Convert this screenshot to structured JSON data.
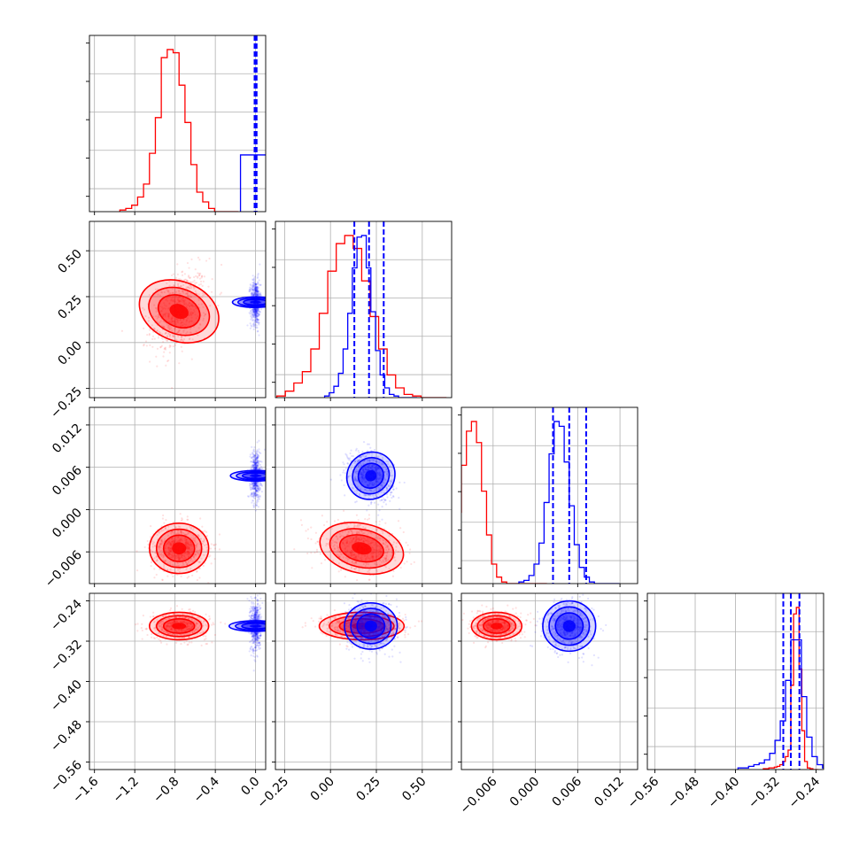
{
  "colors": {
    "red": "#ff0000",
    "blue": "#0000ff",
    "grid": "#b0b0b0",
    "axis": "#000000"
  },
  "chart_data": {
    "type": "corner",
    "grid": true,
    "parameters": [
      {
        "range": [
          -1.65,
          0.1
        ],
        "ticks": [
          "−1.6",
          "−1.2",
          "−0.8",
          "−0.4",
          "0.0"
        ],
        "tick_values": [
          -1.6,
          -1.2,
          -0.8,
          -0.4,
          0.0
        ]
      },
      {
        "range": [
          -0.3,
          0.66
        ],
        "ticks": [
          "−0.25",
          "0.00",
          "0.25",
          "0.50"
        ],
        "tick_values": [
          -0.25,
          0.0,
          0.25,
          0.5
        ]
      },
      {
        "range": [
          -0.0105,
          0.0145
        ],
        "ticks": [
          "−0.006",
          "0.000",
          "0.006",
          "0.012"
        ],
        "tick_values": [
          -0.006,
          0.0,
          0.006,
          0.012
        ]
      },
      {
        "range": [
          -0.575,
          -0.225
        ],
        "ticks": [
          "−0.56",
          "−0.48",
          "−0.40",
          "−0.32",
          "−0.24"
        ],
        "tick_values": [
          -0.56,
          -0.48,
          -0.4,
          -0.32,
          -0.24
        ]
      }
    ],
    "series": [
      {
        "color": "red",
        "means": [
          -0.76,
          0.17,
          -0.0055,
          -0.29
        ],
        "sds": [
          0.14,
          0.11,
          0.0017,
          0.013
        ],
        "corr": {
          "0-1": 0.35,
          "0-2": 0.0,
          "0-3": 0.0,
          "1-2": -0.25,
          "1-3": 0.0,
          "2-3": 0.0
        },
        "quantiles": null,
        "histograms": [
          [
            0.01,
            0.02,
            0.04,
            0.09,
            0.17,
            0.36,
            0.58,
            0.95,
            1.0,
            0.98,
            0.78,
            0.55,
            0.29,
            0.12,
            0.06,
            0.02,
            0,
            0,
            0,
            0
          ],
          [
            0.01,
            0.04,
            0.09,
            0.16,
            0.3,
            0.52,
            0.78,
            0.95,
            1.0,
            0.92,
            0.72,
            0.5,
            0.3,
            0.14,
            0.06,
            0.02,
            0.01,
            0,
            0,
            0
          ],
          [
            0.08,
            0.2,
            0.44,
            0.73,
            0.94,
            1.0,
            0.87,
            0.57,
            0.3,
            0.12,
            0.04,
            0.01,
            0,
            0,
            0,
            0,
            0,
            0,
            0,
            0
          ],
          [
            0.005,
            0.005,
            0.01,
            0.01,
            0.015,
            0.02,
            0.03,
            0.05,
            0.08,
            0.12,
            0.52,
            0.96,
            1.0,
            0.62,
            0.24,
            0.05,
            0.01,
            0.005,
            0,
            0
          ]
        ]
      },
      {
        "color": "blue",
        "means": [
          0.0,
          0.22,
          0.0048,
          -0.29
        ],
        "sds": [
          0.025,
          0.06,
          0.0017,
          0.025
        ],
        "corr": {
          "0-1": 0.0,
          "0-2": 0.0,
          "0-3": 0.0,
          "1-2": -0.3,
          "1-3": 0.0,
          "2-3": 0.0
        },
        "quantiles": [
          [
            -0.01,
            0.0,
            0.01
          ],
          [
            0.13,
            0.21,
            0.29
          ],
          [
            0.0025,
            0.0048,
            0.0072
          ],
          [
            -0.305,
            -0.29,
            -0.273
          ]
        ],
        "histograms": [
          [
            0.35
          ],
          [
            0.01,
            0.03,
            0.07,
            0.15,
            0.3,
            0.52,
            0.8,
            0.99,
            1.0,
            0.8,
            0.53,
            0.29,
            0.14,
            0.06,
            0.02,
            0.01,
            0,
            0,
            0,
            0
          ],
          [
            0.01,
            0.02,
            0.05,
            0.12,
            0.25,
            0.5,
            0.8,
            1.0,
            0.97,
            0.75,
            0.48,
            0.24,
            0.1,
            0.04,
            0.01,
            0,
            0,
            0,
            0,
            0
          ],
          [
            0.01,
            0.01,
            0.02,
            0.03,
            0.04,
            0.06,
            0.1,
            0.18,
            0.3,
            0.55,
            0.8,
            0.8,
            0.45,
            0.2,
            0.08,
            0.03,
            0.01,
            0,
            0,
            0
          ]
        ]
      }
    ]
  },
  "labels": {
    "p0": [
      "−1.6",
      "−1.2",
      "−0.8",
      "−0.4",
      "0.0"
    ],
    "p1": [
      "−0.25",
      "0.00",
      "0.25",
      "0.50"
    ],
    "p2": [
      "−0.006",
      "0.000",
      "0.006",
      "0.012"
    ],
    "p3": [
      "−0.56",
      "−0.48",
      "−0.40",
      "−0.32",
      "−0.24"
    ]
  }
}
